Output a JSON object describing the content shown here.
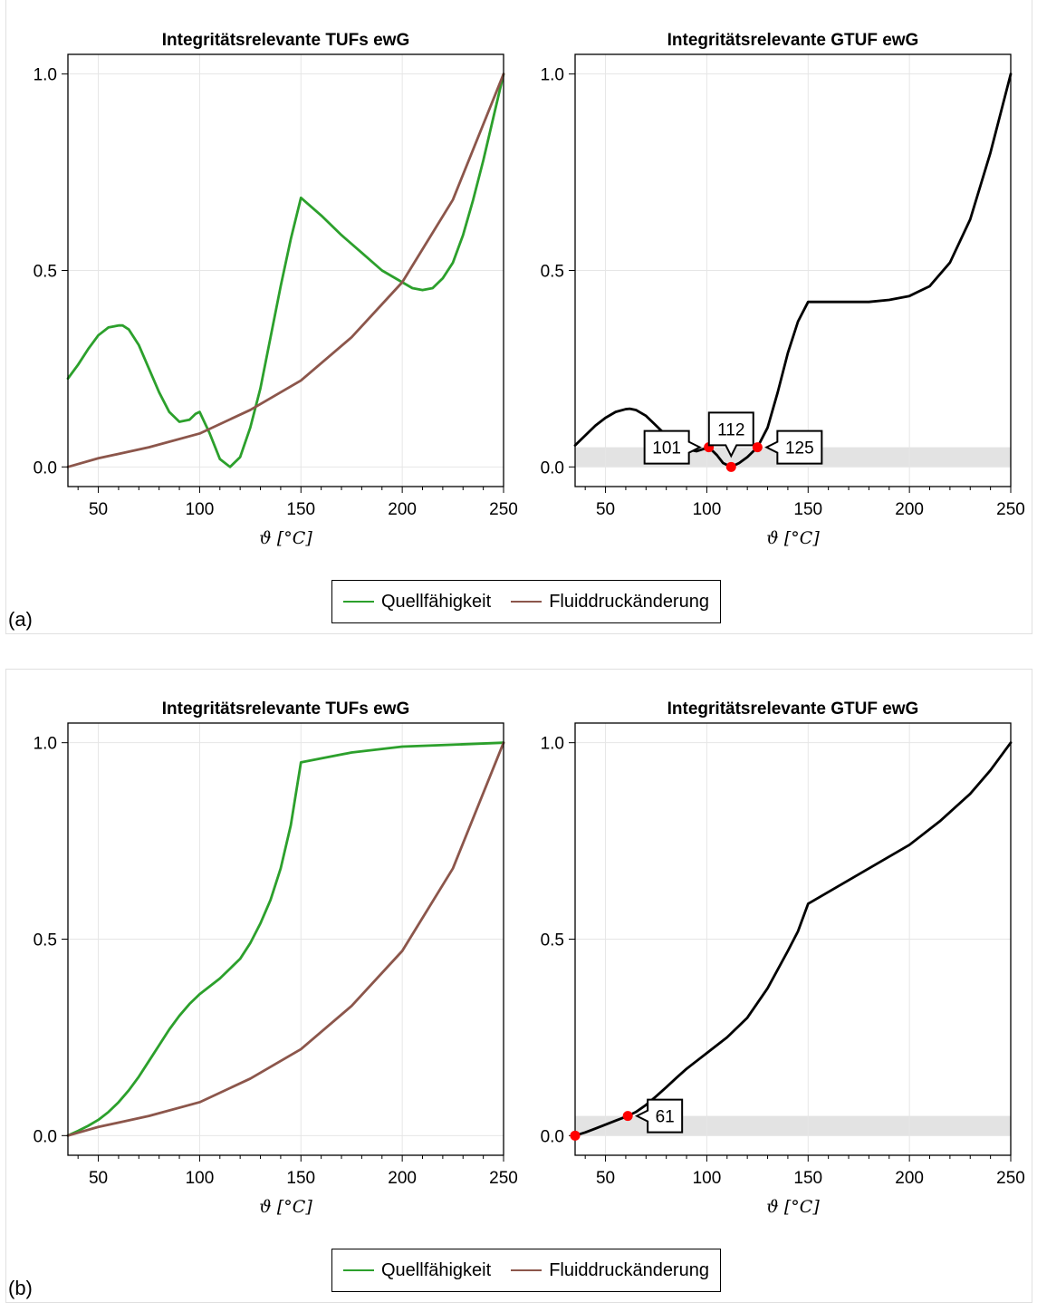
{
  "colors": {
    "quell": "#2ca02c",
    "fluid": "#8c564b",
    "gtuf": "#000000",
    "marker": "#ff0000",
    "band": "#e3e3e3",
    "grid": "#e6e6e6"
  },
  "panels": [
    {
      "label": "(a)",
      "legend": [
        {
          "name": "Quellfähigkeit",
          "color": "#2ca02c"
        },
        {
          "name": "Fluiddruckänderung",
          "color": "#8c564b"
        }
      ]
    },
    {
      "label": "(b)",
      "legend": [
        {
          "name": "Quellfähigkeit",
          "color": "#2ca02c"
        },
        {
          "name": "Fluiddruckänderung",
          "color": "#8c564b"
        }
      ]
    }
  ],
  "chart_data": [
    {
      "panel": "(a)",
      "type": "line",
      "title": "Integritätsrelevante TUFs ewG",
      "xlabel": "ϑ [°C]",
      "ylabel": "",
      "xlim": [
        35,
        250
      ],
      "ylim": [
        -0.05,
        1.05
      ],
      "xticks": [
        50,
        100,
        150,
        200,
        250
      ],
      "yticks": [
        0.0,
        0.5,
        1.0
      ],
      "ytick_labels": [
        "0.0",
        "0.5",
        "1.0"
      ],
      "grid": true,
      "series": [
        {
          "name": "Quellfähigkeit",
          "color": "#2ca02c",
          "x": [
            35,
            40,
            45,
            50,
            55,
            60,
            62,
            65,
            70,
            75,
            80,
            85,
            90,
            95,
            98,
            100,
            105,
            110,
            115,
            120,
            125,
            130,
            135,
            140,
            145,
            150,
            160,
            170,
            180,
            190,
            200,
            205,
            210,
            215,
            220,
            225,
            230,
            235,
            240,
            245,
            250
          ],
          "y": [
            0.225,
            0.26,
            0.3,
            0.335,
            0.355,
            0.36,
            0.36,
            0.35,
            0.31,
            0.25,
            0.19,
            0.14,
            0.115,
            0.12,
            0.135,
            0.14,
            0.085,
            0.02,
            0.0,
            0.025,
            0.1,
            0.2,
            0.33,
            0.46,
            0.58,
            0.685,
            0.64,
            0.59,
            0.545,
            0.5,
            0.47,
            0.455,
            0.45,
            0.455,
            0.48,
            0.52,
            0.59,
            0.68,
            0.78,
            0.89,
            1.0
          ]
        },
        {
          "name": "Fluiddruckänderung",
          "color": "#8c564b",
          "x": [
            35,
            50,
            75,
            100,
            125,
            150,
            175,
            200,
            225,
            250
          ],
          "y": [
            0.0,
            0.022,
            0.05,
            0.085,
            0.145,
            0.22,
            0.33,
            0.47,
            0.68,
            1.0
          ]
        }
      ]
    },
    {
      "panel": "(a)",
      "type": "line",
      "title": "Integritätsrelevante GTUF ewG",
      "xlabel": "ϑ [°C]",
      "ylabel": "",
      "xlim": [
        35,
        250
      ],
      "ylim": [
        -0.05,
        1.05
      ],
      "xticks": [
        50,
        100,
        150,
        200,
        250
      ],
      "yticks": [
        0.0,
        0.5,
        1.0
      ],
      "ytick_labels": [
        "0.0",
        "0.5",
        "1.0"
      ],
      "grid": true,
      "band": [
        0.0,
        0.05
      ],
      "series": [
        {
          "name": "GTUF",
          "color": "#000000",
          "x": [
            35,
            40,
            45,
            50,
            55,
            60,
            62,
            65,
            70,
            75,
            80,
            85,
            90,
            95,
            101,
            105,
            108,
            112,
            116,
            120,
            125,
            130,
            135,
            140,
            145,
            150,
            160,
            170,
            180,
            190,
            200,
            210,
            220,
            230,
            240,
            250
          ],
          "y": [
            0.055,
            0.08,
            0.105,
            0.125,
            0.14,
            0.147,
            0.148,
            0.145,
            0.13,
            0.105,
            0.08,
            0.06,
            0.045,
            0.04,
            0.05,
            0.03,
            0.01,
            0.0,
            0.01,
            0.025,
            0.05,
            0.1,
            0.19,
            0.29,
            0.37,
            0.42,
            0.42,
            0.42,
            0.42,
            0.425,
            0.435,
            0.46,
            0.52,
            0.63,
            0.8,
            1.0
          ]
        }
      ],
      "markers": [
        {
          "x": 101,
          "y": 0.05,
          "label": "101",
          "side": "left"
        },
        {
          "x": 112,
          "y": 0.0,
          "label": "112",
          "side": "top"
        },
        {
          "x": 125,
          "y": 0.05,
          "label": "125",
          "side": "right"
        }
      ]
    },
    {
      "panel": "(b)",
      "type": "line",
      "title": "Integritätsrelevante TUFs ewG",
      "xlabel": "ϑ [°C]",
      "ylabel": "",
      "xlim": [
        35,
        250
      ],
      "ylim": [
        -0.05,
        1.05
      ],
      "xticks": [
        50,
        100,
        150,
        200,
        250
      ],
      "yticks": [
        0.0,
        0.5,
        1.0
      ],
      "ytick_labels": [
        "0.0",
        "0.5",
        "1.0"
      ],
      "grid": true,
      "series": [
        {
          "name": "Quellfähigkeit",
          "color": "#2ca02c",
          "x": [
            35,
            40,
            45,
            50,
            55,
            60,
            65,
            70,
            75,
            80,
            85,
            90,
            95,
            100,
            110,
            120,
            125,
            130,
            135,
            140,
            145,
            150,
            160,
            175,
            200,
            225,
            250
          ],
          "y": [
            0.0,
            0.012,
            0.025,
            0.04,
            0.06,
            0.085,
            0.115,
            0.15,
            0.19,
            0.23,
            0.27,
            0.305,
            0.335,
            0.36,
            0.4,
            0.45,
            0.49,
            0.54,
            0.6,
            0.68,
            0.79,
            0.95,
            0.96,
            0.975,
            0.99,
            0.995,
            1.0
          ]
        },
        {
          "name": "Fluiddruckänderung",
          "color": "#8c564b",
          "x": [
            35,
            50,
            75,
            100,
            125,
            150,
            175,
            200,
            225,
            250
          ],
          "y": [
            0.0,
            0.022,
            0.05,
            0.085,
            0.145,
            0.22,
            0.33,
            0.47,
            0.68,
            1.0
          ]
        }
      ]
    },
    {
      "panel": "(b)",
      "type": "line",
      "title": "Integritätsrelevante GTUF ewG",
      "xlabel": "ϑ [°C]",
      "ylabel": "",
      "xlim": [
        35,
        250
      ],
      "ylim": [
        -0.05,
        1.05
      ],
      "xticks": [
        50,
        100,
        150,
        200,
        250
      ],
      "yticks": [
        0.0,
        0.5,
        1.0
      ],
      "ytick_labels": [
        "0.0",
        "0.5",
        "1.0"
      ],
      "grid": true,
      "band": [
        0.0,
        0.05
      ],
      "series": [
        {
          "name": "GTUF",
          "color": "#000000",
          "x": [
            35,
            40,
            45,
            50,
            55,
            61,
            65,
            70,
            75,
            80,
            85,
            90,
            95,
            100,
            110,
            120,
            130,
            140,
            145,
            150,
            160,
            175,
            200,
            215,
            230,
            240,
            250
          ],
          "y": [
            0.0,
            0.008,
            0.018,
            0.028,
            0.038,
            0.05,
            0.06,
            0.078,
            0.1,
            0.123,
            0.147,
            0.17,
            0.19,
            0.21,
            0.25,
            0.3,
            0.375,
            0.47,
            0.52,
            0.59,
            0.62,
            0.665,
            0.74,
            0.8,
            0.87,
            0.93,
            1.0
          ]
        }
      ],
      "markers": [
        {
          "x": 35,
          "y": 0.0,
          "label": "",
          "side": "none"
        },
        {
          "x": 61,
          "y": 0.05,
          "label": "61",
          "side": "right"
        }
      ]
    }
  ]
}
